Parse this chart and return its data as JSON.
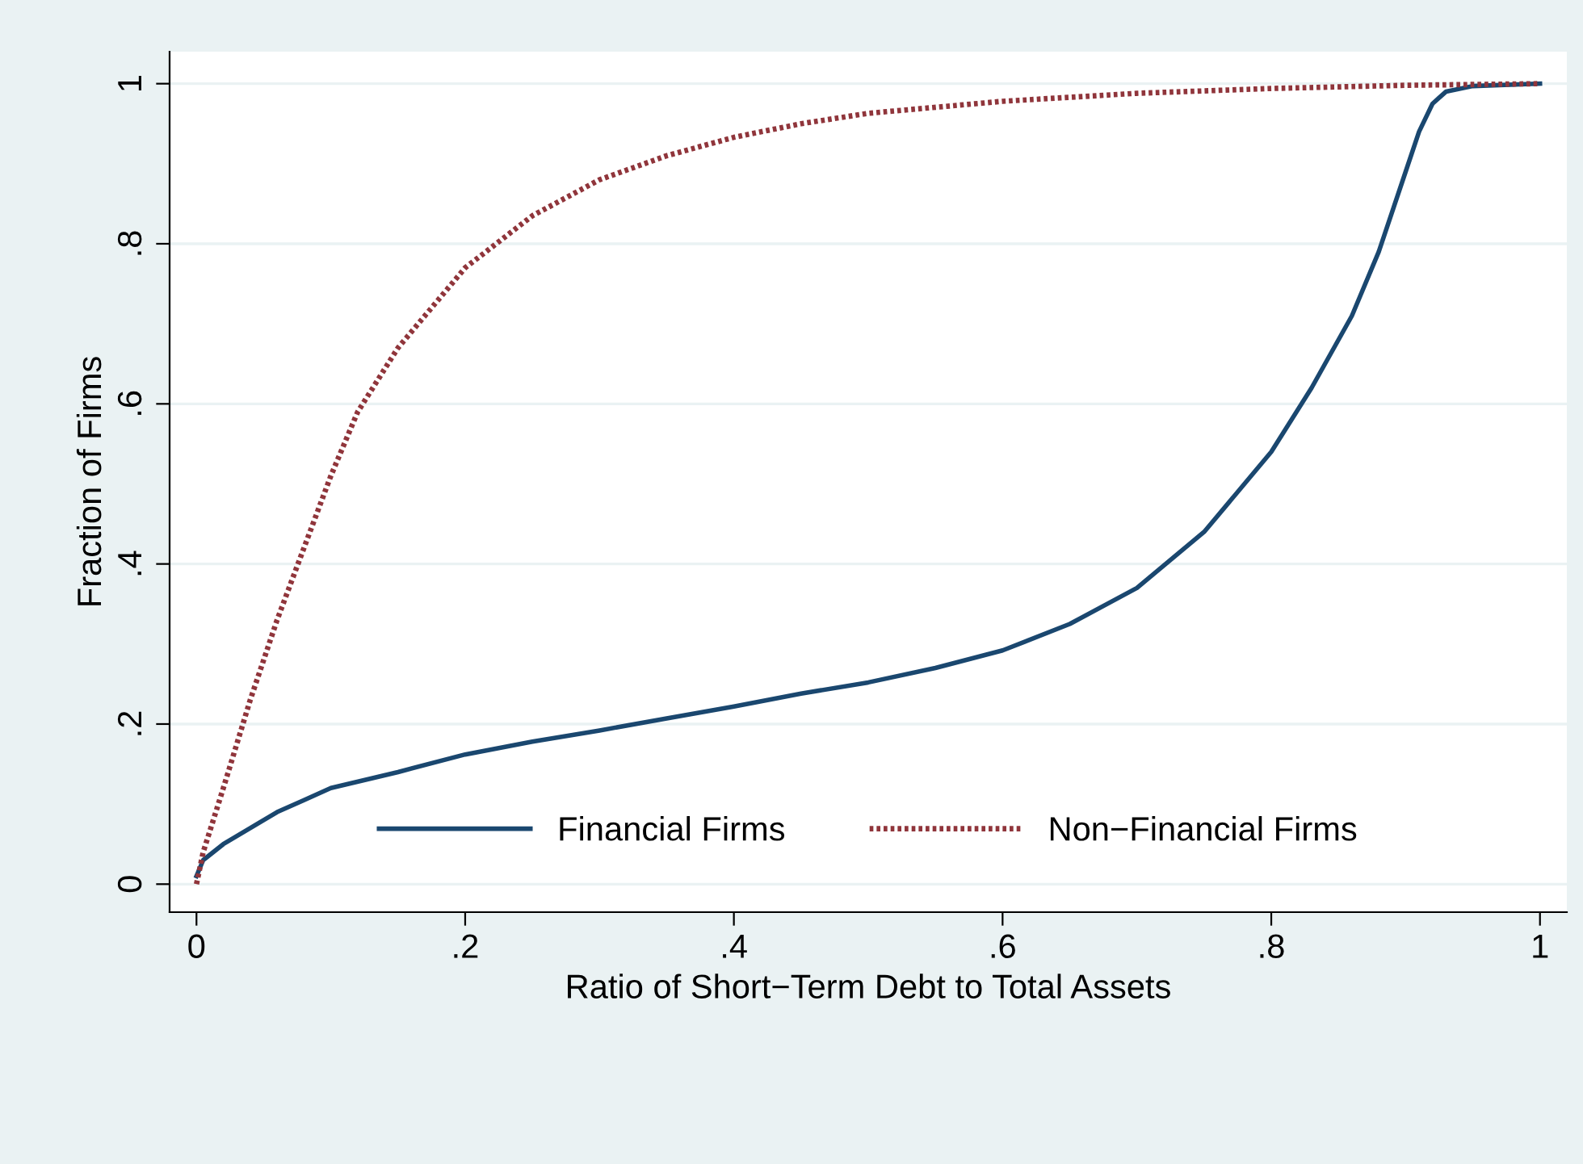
{
  "chart_data": {
    "type": "line",
    "xlabel": "Ratio of Short−Term Debt to Total Assets",
    "ylabel": "Fraction of Firms",
    "xlim": [
      -0.02,
      1.02
    ],
    "ylim": [
      -0.035,
      1.04
    ],
    "xticks": [
      0,
      {
        "value": 0.2,
        "label": ".2"
      },
      {
        "value": 0.4,
        "label": ".4"
      },
      {
        "value": 0.6,
        "label": ".6"
      },
      {
        "value": 0.8,
        "label": ".8"
      },
      1
    ],
    "yticks": [
      0,
      {
        "value": 0.2,
        "label": ".2"
      },
      {
        "value": 0.4,
        "label": ".4"
      },
      {
        "value": 0.6,
        "label": ".6"
      },
      {
        "value": 0.8,
        "label": ".8"
      },
      1
    ],
    "grid": "y",
    "legend": "bottom",
    "marker": "none",
    "series": [
      {
        "name": "Financial Firms",
        "color": "#1a476f",
        "line_style": "solid",
        "x": [
          0,
          0.005,
          0.02,
          0.04,
          0.06,
          0.08,
          0.1,
          0.15,
          0.2,
          0.25,
          0.3,
          0.35,
          0.4,
          0.45,
          0.5,
          0.55,
          0.6,
          0.65,
          0.7,
          0.75,
          0.8,
          0.83,
          0.86,
          0.88,
          0.9,
          0.91,
          0.92,
          0.93,
          0.95,
          1
        ],
        "values": [
          0.01,
          0.03,
          0.05,
          0.07,
          0.09,
          0.105,
          0.12,
          0.14,
          0.162,
          0.178,
          0.192,
          0.207,
          0.222,
          0.238,
          0.252,
          0.27,
          0.292,
          0.325,
          0.37,
          0.44,
          0.54,
          0.62,
          0.71,
          0.79,
          0.89,
          0.94,
          0.975,
          0.99,
          0.997,
          1
        ]
      },
      {
        "name": "Non−Financial Firms",
        "color": "#90353b",
        "line_style": "dotted",
        "x": [
          0,
          0.005,
          0.02,
          0.04,
          0.06,
          0.08,
          0.1,
          0.12,
          0.15,
          0.2,
          0.25,
          0.3,
          0.35,
          0.4,
          0.45,
          0.5,
          0.6,
          0.7,
          0.8,
          0.9,
          1
        ],
        "values": [
          0,
          0.04,
          0.12,
          0.23,
          0.33,
          0.42,
          0.51,
          0.59,
          0.67,
          0.77,
          0.835,
          0.88,
          0.91,
          0.933,
          0.95,
          0.963,
          0.978,
          0.988,
          0.994,
          0.998,
          1
        ]
      }
    ]
  }
}
